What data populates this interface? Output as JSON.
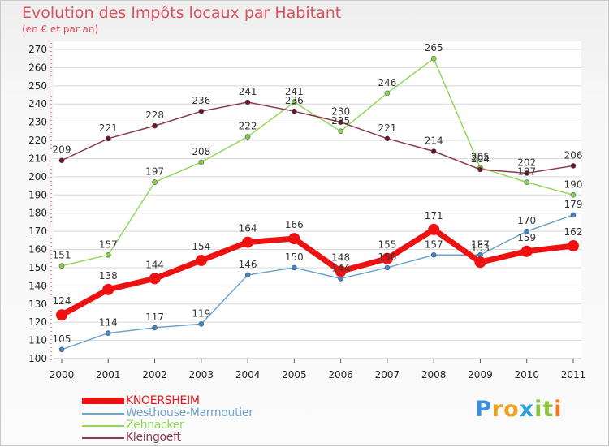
{
  "header": {
    "title": "Evolution des Impôts locaux par Habitant",
    "subtitle": "(en € et par an)"
  },
  "logo": {
    "text": "Proxiti",
    "letters": [
      {
        "ch": "P",
        "color": "#3a8fd8"
      },
      {
        "ch": "r",
        "color": "#f0a020"
      },
      {
        "ch": "o",
        "color": "#f0a020"
      },
      {
        "ch": "x",
        "color": "#2fa0e0"
      },
      {
        "ch": "i",
        "color": "#8cc63f"
      },
      {
        "ch": "t",
        "color": "#8cc63f"
      },
      {
        "ch": "i",
        "color": "#f07820"
      }
    ]
  },
  "chart_data": {
    "type": "line",
    "title": "Evolution des Impôts locaux par Habitant",
    "subtitle": "(en € et par an)",
    "xlabel": "",
    "ylabel": "",
    "x": [
      "2000",
      "2001",
      "2002",
      "2003",
      "2004",
      "2005",
      "2006",
      "2007",
      "2008",
      "2009",
      "2010",
      "2011"
    ],
    "ylim": [
      100,
      270
    ],
    "ytick_step": 10,
    "grid": "horizontal",
    "legend_position": "bottom-left",
    "series": [
      {
        "name": "KNOERSHEIM",
        "color": "#ee1111",
        "line_width": 7,
        "marker": 7,
        "values": [
          124,
          138,
          144,
          154,
          164,
          166,
          148,
          155,
          171,
          153,
          159,
          162
        ]
      },
      {
        "name": "Westhouse-Marmoutier",
        "color": "#6ea3cf",
        "point_color": "#3f87c6",
        "line_width": 1.5,
        "marker": 3,
        "values": [
          105,
          114,
          117,
          119,
          146,
          150,
          144,
          150,
          157,
          157,
          170,
          179
        ]
      },
      {
        "name": "Zehnacker",
        "color": "#90d85a",
        "point_color": "#86d14d",
        "line_width": 1.5,
        "marker": 3,
        "values": [
          151,
          157,
          197,
          208,
          222,
          241,
          225,
          246,
          265,
          205,
          197,
          190
        ]
      },
      {
        "name": "Kleingoeft",
        "color": "#8a3a4a",
        "point_color": "#6b1525",
        "line_width": 1.5,
        "marker": 3,
        "values": [
          209,
          221,
          228,
          236,
          241,
          236,
          230,
          221,
          214,
          204,
          202,
          206
        ]
      }
    ]
  }
}
